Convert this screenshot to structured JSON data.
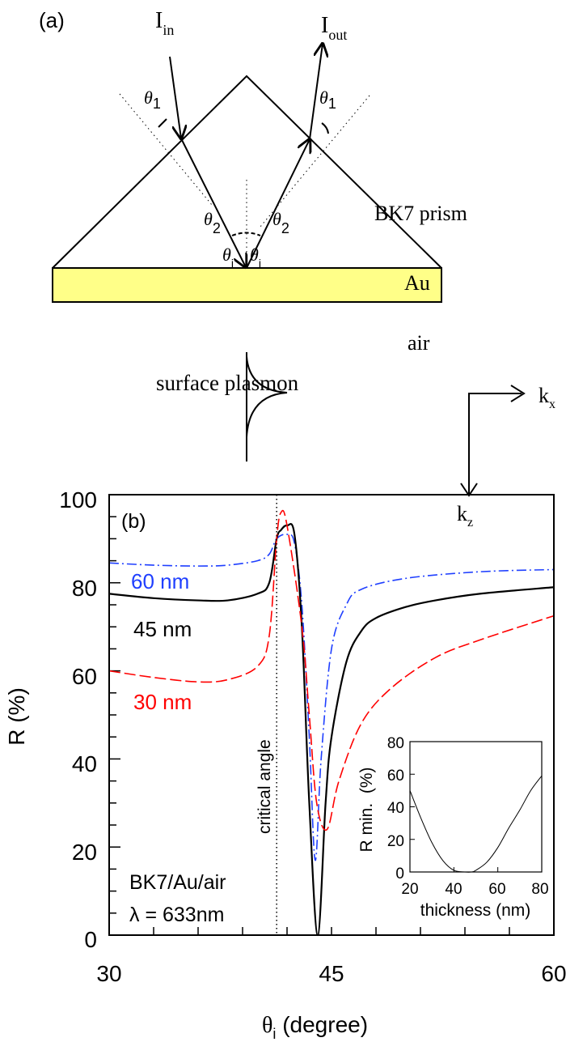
{
  "diagram": {
    "panel_label": "(a)",
    "incident_label": "I",
    "incident_sub": "in",
    "output_label": "I",
    "output_sub": "out",
    "theta_symbol": "θ",
    "theta1_sub": "1",
    "theta2_sub": "2",
    "thetai_sub": "i",
    "prism_label": "BK7 prism",
    "metal_label": "Au",
    "ambient_label": "air",
    "plasmon_label": "surface plasmon",
    "kx_label": "k",
    "kx_sub": "x",
    "kz_label": "k",
    "kz_sub": "z",
    "gold_color": "#ffff88"
  },
  "chart_data": [
    {
      "type": "line",
      "panel_label": "(b)",
      "xlabel_symbol": "θ",
      "xlabel_sub": "i",
      "xlabel_rest": " (degree)",
      "ylabel": "R (%)",
      "xlim": [
        30,
        60
      ],
      "ylim": [
        0,
        100
      ],
      "xticks": [
        "30",
        "45",
        "60"
      ],
      "yticks": [
        "0",
        "20",
        "40",
        "60",
        "80",
        "100"
      ],
      "grid": false,
      "annotations": {
        "critical_angle_label": "critical angle",
        "critical_angle_x": 41.3,
        "system": "BK7/Au/air",
        "wavelength": "λ = 633nm"
      },
      "series": [
        {
          "name": "60 nm",
          "color": "#1f3fff",
          "style": "dash-dot",
          "x": [
            30,
            33,
            36,
            38,
            40,
            40.8,
            41.3,
            42,
            42.5,
            43,
            43.5,
            43.9,
            44.3,
            45,
            46,
            47,
            50,
            55,
            60
          ],
          "y": [
            84.5,
            84,
            83.8,
            84,
            85,
            86.5,
            90,
            91,
            89,
            75,
            45,
            17,
            40,
            65,
            75,
            78.5,
            81,
            82.5,
            83
          ]
        },
        {
          "name": "45 nm",
          "color": "#000000",
          "style": "solid",
          "x": [
            30,
            33,
            36,
            38,
            40,
            40.8,
            41.3,
            41.6,
            42,
            42.5,
            43,
            43.5,
            44.07,
            44.6,
            45,
            46,
            47,
            48,
            50,
            52,
            55,
            60
          ],
          "y": [
            77.5,
            76.5,
            76,
            76,
            77.5,
            80,
            90,
            92,
            93,
            91,
            70,
            30,
            0,
            30,
            45,
            62,
            69,
            72,
            74.5,
            76,
            77.5,
            79
          ]
        },
        {
          "name": "30 nm",
          "color": "#ff0000",
          "style": "dashed",
          "x": [
            30,
            33,
            36,
            38,
            40,
            40.8,
            41.3,
            41.6,
            42,
            43,
            43.5,
            44,
            44.7,
            45.5,
            47,
            49,
            52,
            55,
            60
          ],
          "y": [
            60,
            58.5,
            57.5,
            58,
            61,
            68,
            90,
            96,
            93,
            70,
            50,
            30,
            24,
            35,
            48,
            56,
            63,
            67,
            72.5
          ]
        }
      ]
    },
    {
      "type": "line",
      "xlabel": "thickness (nm)",
      "ylabel": "R min.  (%)",
      "xlim": [
        20,
        80
      ],
      "ylim": [
        0,
        80
      ],
      "xticks": [
        "20",
        "40",
        "60",
        "80"
      ],
      "yticks": [
        "0",
        "20",
        "40",
        "60",
        "80"
      ],
      "grid": false,
      "series": [
        {
          "color": "#000000",
          "x": [
            20,
            25,
            30,
            35,
            40,
            45,
            48,
            50,
            55,
            60,
            65,
            70,
            75,
            80
          ],
          "y": [
            50,
            33,
            18,
            7,
            1,
            0,
            0,
            1,
            6,
            15,
            27,
            38,
            50,
            59
          ]
        }
      ]
    }
  ]
}
